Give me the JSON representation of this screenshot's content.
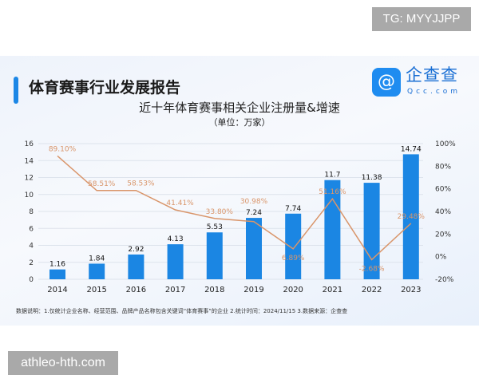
{
  "watermark_top": "TG: MYYJJPP",
  "watermark_bottom": "athleo-hth.com",
  "header": {
    "title": "体育赛事行业发展报告",
    "logo_text": "企查查",
    "logo_sub": "Qcc.com",
    "logo_icon": "q-logo-icon"
  },
  "chart_data": {
    "type": "bar+line",
    "title": "近十年体育赛事相关企业注册量&增速",
    "subtitle": "（单位：万家）",
    "categories": [
      "2014",
      "2015",
      "2016",
      "2017",
      "2018",
      "2019",
      "2020",
      "2021",
      "2022",
      "2023"
    ],
    "bar_values": [
      1.16,
      1.84,
      2.92,
      4.13,
      5.53,
      7.24,
      7.74,
      11.7,
      11.38,
      14.74
    ],
    "bar_labels": [
      "1.16",
      "1.84",
      "2.92",
      "4.13",
      "5.53",
      "7.24",
      "7.74",
      "11.7",
      "11.38",
      "14.74"
    ],
    "line_values": [
      89.1,
      58.51,
      58.53,
      41.41,
      33.8,
      30.98,
      6.89,
      51.16,
      -2.68,
      29.48
    ],
    "line_labels": [
      "89.10%",
      "58.51%",
      "58.53%",
      "41.41%",
      "33.80%",
      "30.98%",
      "6.89%",
      "51.16%",
      "-2.68%",
      "29.48%"
    ],
    "y_left": {
      "min": 0,
      "max": 16,
      "ticks": [
        "0",
        "2",
        "4",
        "6",
        "8",
        "10",
        "12",
        "14",
        "16"
      ]
    },
    "y_right": {
      "min": -20,
      "max": 100,
      "ticks": [
        "-20%",
        "0%",
        "20%",
        "40%",
        "60%",
        "80%",
        "100%"
      ]
    },
    "grid": true,
    "colors": {
      "bar": "#1b86e3",
      "line": "#d9956a"
    }
  },
  "footnote": "数据说明：1.仅统计企业名称、经营范围、品牌产品名称包含关键词“体育赛事”的企业  2.统计时间：2024/11/15   3.数据来源：企查查"
}
